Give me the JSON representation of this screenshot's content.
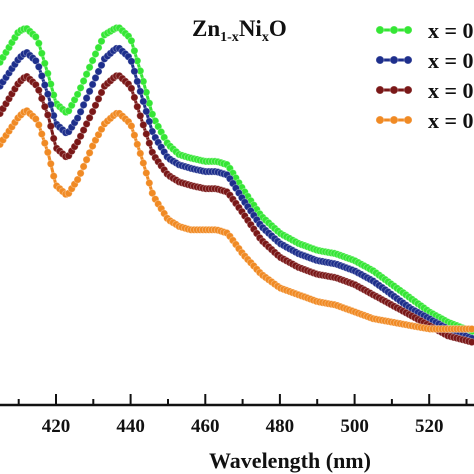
{
  "chart_data": {
    "type": "line",
    "title": "Zn",
    "title_sub1": "1-x",
    "title_mid": "Ni",
    "title_sub2": "x",
    "title_end": "O",
    "xlabel": "Wavelength (nm)",
    "ylabel": "",
    "xlim": [
      405,
      532
    ],
    "ylim": [
      0,
      1
    ],
    "grid": false,
    "legend_position": "top-right",
    "x_ticks": [
      "420",
      "440",
      "460",
      "480",
      "500",
      "520"
    ],
    "x": [
      405,
      410,
      412,
      415,
      418,
      420,
      423,
      426,
      430,
      433,
      436,
      437,
      440,
      443,
      446,
      450,
      453,
      456,
      460,
      463,
      466,
      470,
      475,
      480,
      485,
      490,
      495,
      500,
      505,
      510,
      515,
      520,
      525,
      532
    ],
    "series": [
      {
        "name": "x = 0",
        "color": "#35e635",
        "values": [
          0.9,
          0.99,
          1.0,
          0.97,
          0.86,
          0.78,
          0.75,
          0.81,
          0.91,
          0.98,
          1.0,
          1.0,
          0.97,
          0.86,
          0.74,
          0.66,
          0.63,
          0.62,
          0.61,
          0.61,
          0.6,
          0.53,
          0.45,
          0.4,
          0.37,
          0.35,
          0.34,
          0.32,
          0.29,
          0.25,
          0.21,
          0.17,
          0.14,
          0.11
        ]
      },
      {
        "name": "x = 0",
        "color": "#1e2f8c",
        "values": [
          0.83,
          0.91,
          0.93,
          0.9,
          0.8,
          0.72,
          0.69,
          0.74,
          0.84,
          0.91,
          0.94,
          0.94,
          0.91,
          0.8,
          0.69,
          0.62,
          0.6,
          0.59,
          0.58,
          0.58,
          0.57,
          0.5,
          0.42,
          0.37,
          0.34,
          0.32,
          0.31,
          0.29,
          0.26,
          0.22,
          0.18,
          0.15,
          0.12,
          0.09
        ]
      },
      {
        "name": "x = 0",
        "color": "#7a1818",
        "values": [
          0.75,
          0.84,
          0.86,
          0.83,
          0.74,
          0.65,
          0.62,
          0.67,
          0.76,
          0.83,
          0.86,
          0.86,
          0.83,
          0.73,
          0.63,
          0.57,
          0.55,
          0.54,
          0.53,
          0.53,
          0.52,
          0.46,
          0.38,
          0.33,
          0.3,
          0.28,
          0.27,
          0.25,
          0.22,
          0.19,
          0.16,
          0.13,
          0.1,
          0.08
        ]
      },
      {
        "name": "x = 0",
        "color": "#f08a24",
        "values": [
          0.66,
          0.74,
          0.76,
          0.73,
          0.63,
          0.54,
          0.51,
          0.56,
          0.66,
          0.72,
          0.75,
          0.75,
          0.72,
          0.62,
          0.51,
          0.44,
          0.42,
          0.41,
          0.41,
          0.41,
          0.4,
          0.34,
          0.28,
          0.24,
          0.22,
          0.2,
          0.19,
          0.17,
          0.15,
          0.14,
          0.13,
          0.12,
          0.12,
          0.12
        ]
      }
    ]
  }
}
